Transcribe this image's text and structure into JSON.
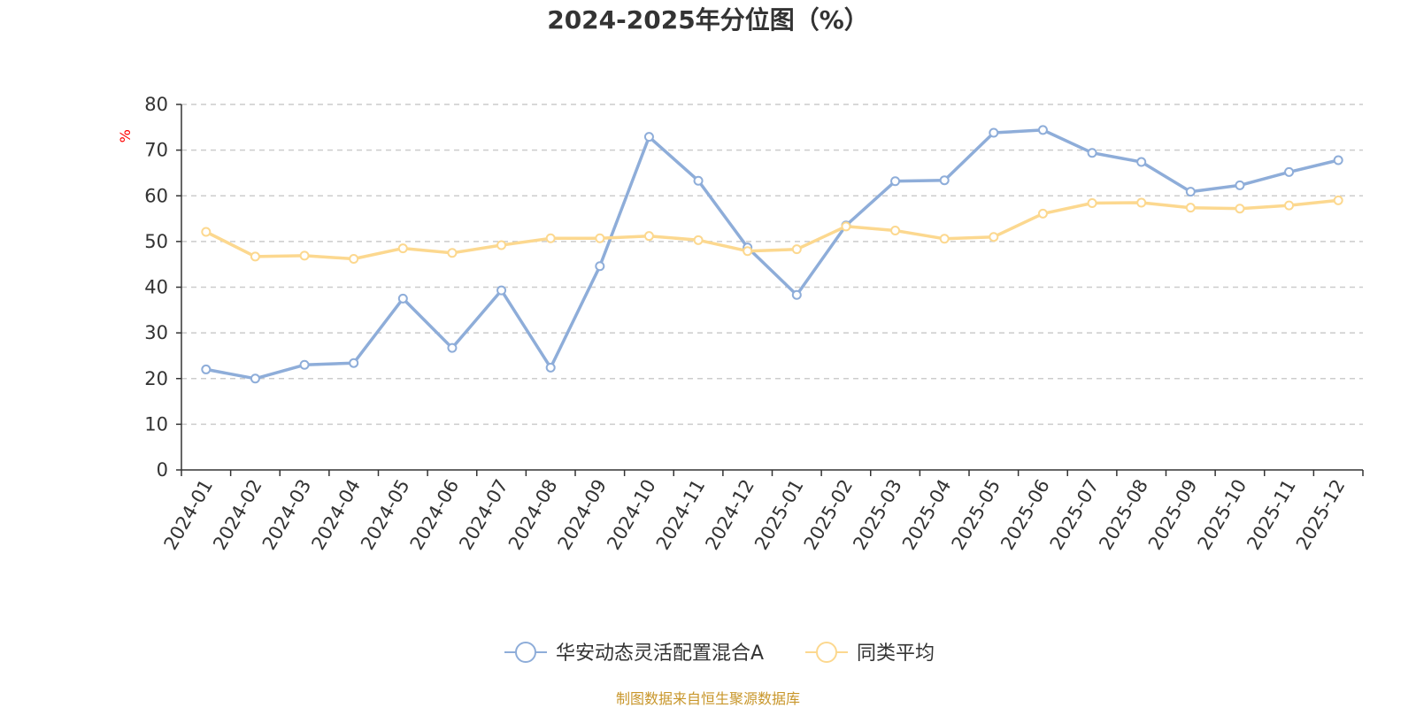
{
  "chart_data": {
    "type": "line",
    "title": "2024-2025年分位图（%）",
    "ylabel": "%",
    "xlabel": "",
    "ylim": [
      0,
      80
    ],
    "yticks": [
      0,
      10,
      20,
      30,
      40,
      50,
      60,
      70,
      80
    ],
    "grid": true,
    "legend_position": "bottom-center",
    "categories": [
      "2024-01",
      "2024-02",
      "2024-03",
      "2024-04",
      "2024-05",
      "2024-06",
      "2024-07",
      "2024-08",
      "2024-09",
      "2024-10",
      "2024-11",
      "2024-12",
      "2025-01",
      "2025-02",
      "2025-03",
      "2025-04",
      "2025-05",
      "2025-06",
      "2025-07",
      "2025-08",
      "2025-09",
      "2025-10",
      "2025-11",
      "2025-12"
    ],
    "series": [
      {
        "name": "华安动态灵活配置混合A",
        "color": "#8eadd9",
        "values": [
          22.0,
          20.0,
          23.0,
          23.4,
          37.5,
          26.7,
          39.3,
          22.4,
          44.6,
          72.9,
          63.3,
          48.7,
          38.3,
          53.5,
          63.2,
          63.4,
          73.8,
          74.4,
          69.4,
          67.4,
          60.9,
          62.3,
          65.2,
          67.8
        ]
      },
      {
        "name": "同类平均",
        "color": "#fcd88f",
        "values": [
          52.1,
          46.7,
          46.9,
          46.2,
          48.5,
          47.5,
          49.2,
          50.7,
          50.7,
          51.2,
          50.3,
          47.9,
          48.3,
          53.3,
          52.4,
          50.6,
          51.0,
          56.1,
          58.4,
          58.5,
          57.4,
          57.2,
          57.9,
          59.0
        ]
      }
    ],
    "source_note": "制图数据来自恒生聚源数据库",
    "colors": {
      "axis": "#333333",
      "grid": "#cccccc",
      "unit_label": "#ff0000",
      "source_note": "#c8962a"
    }
  }
}
